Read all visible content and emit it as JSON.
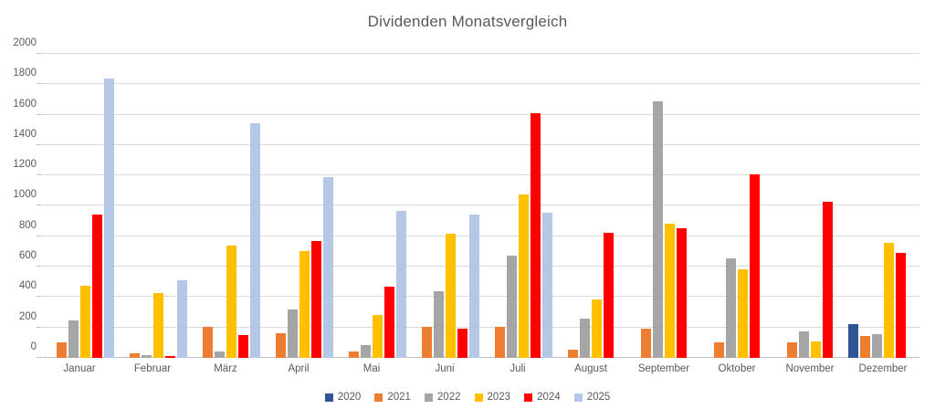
{
  "chart_data": {
    "type": "bar",
    "title": "Dividenden Monatsvergleich",
    "categories": [
      "Januar",
      "Februar",
      "März",
      "April",
      "Mai",
      "Juni",
      "Juli",
      "August",
      "September",
      "Oktober",
      "November",
      "Dezember"
    ],
    "series": [
      {
        "name": "2020",
        "color": "#2F5597",
        "values": [
          null,
          null,
          null,
          null,
          null,
          null,
          null,
          null,
          null,
          null,
          null,
          220
        ]
      },
      {
        "name": "2021",
        "color": "#ED7D31",
        "values": [
          105,
          30,
          205,
          165,
          45,
          205,
          205,
          55,
          195,
          100,
          100,
          145
        ]
      },
      {
        "name": "2022",
        "color": "#A5A5A5",
        "values": [
          245,
          20,
          40,
          320,
          85,
          440,
          675,
          260,
          1690,
          655,
          175,
          155
        ]
      },
      {
        "name": "2023",
        "color": "#FFC000",
        "values": [
          475,
          425,
          740,
          705,
          280,
          815,
          1075,
          385,
          885,
          585,
          110,
          755
        ]
      },
      {
        "name": "2024",
        "color": "#FF0000",
        "values": [
          940,
          10,
          150,
          770,
          470,
          190,
          1610,
          820,
          855,
          1210,
          1025,
          690
        ]
      },
      {
        "name": "2025",
        "color": "#B4C7E7",
        "values": [
          1840,
          510,
          1545,
          1190,
          965,
          945,
          955,
          null,
          null,
          null,
          null,
          null
        ]
      }
    ],
    "ylim": [
      0,
      2000
    ],
    "ytick_step": 200,
    "grid": true,
    "legend_position": "bottom",
    "text_color": "#595959",
    "gridline_color": "#d9d9d9"
  }
}
